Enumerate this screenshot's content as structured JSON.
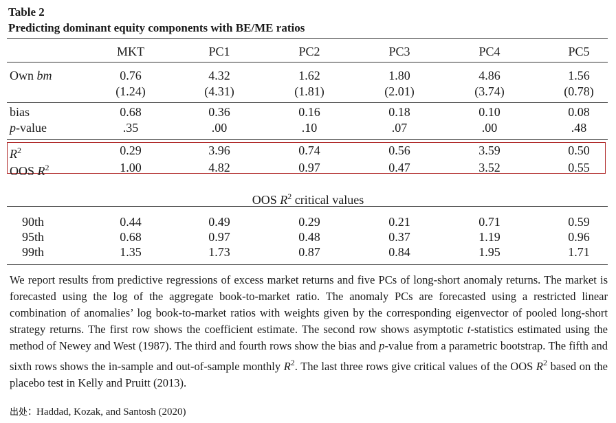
{
  "table": {
    "label": "Table 2",
    "caption": "Predicting dominant equity components with BE/ME ratios",
    "columns": [
      "MKT",
      "PC1",
      "PC2",
      "PC3",
      "PC4",
      "PC5"
    ],
    "own_bm": {
      "label_prefix": "Own ",
      "label_italic": "bm",
      "coef": [
        "0.76",
        "4.32",
        "1.62",
        "1.80",
        "4.86",
        "1.56"
      ],
      "tstat": [
        "(1.24)",
        "(4.31)",
        "(1.81)",
        "(2.01)",
        "(3.74)",
        "(0.78)"
      ]
    },
    "bias": {
      "label": "bias",
      "values": [
        "0.68",
        "0.36",
        "0.16",
        "0.18",
        "0.10",
        "0.08"
      ]
    },
    "pvalue": {
      "label_italic": "p",
      "label_suffix": "-value",
      "values": [
        ".35",
        ".00",
        ".10",
        ".07",
        ".00",
        ".48"
      ]
    },
    "r2": {
      "label": "R",
      "sup": "2",
      "values": [
        "0.29",
        "3.96",
        "0.74",
        "0.56",
        "3.59",
        "0.50"
      ]
    },
    "oos_r2": {
      "label_prefix": "OOS ",
      "label": "R",
      "sup": "2",
      "values": [
        "1.00",
        "4.82",
        "0.97",
        "0.47",
        "3.52",
        "0.55"
      ]
    },
    "critical": {
      "heading_prefix": "OOS ",
      "heading_var": "R",
      "heading_sup": "2",
      "heading_suffix": " critical values",
      "rows": [
        {
          "label": "90th",
          "values": [
            "0.44",
            "0.49",
            "0.29",
            "0.21",
            "0.71",
            "0.59"
          ]
        },
        {
          "label": "95th",
          "values": [
            "0.68",
            "0.97",
            "0.48",
            "0.37",
            "1.19",
            "0.96"
          ]
        },
        {
          "label": "99th",
          "values": [
            "1.35",
            "1.73",
            "0.87",
            "0.84",
            "1.95",
            "1.71"
          ]
        }
      ]
    }
  },
  "note": {
    "p1": "We report results from predictive regressions of excess market returns and five PCs of long-short anomaly returns. The market is forecasted using the log of the aggregate book-to-market ratio. The anomaly PCs are forecasted using a restricted linear combination of anomalies’ log book-to-market ratios with weights given by the corresponding eigenvector of pooled long-short strategy returns. The first row shows the coefficient estimate. The second row shows asymptotic ",
    "t_italic": "t",
    "p2": "-statistics estimated using the method of Newey and West (1987). The third and fourth rows show the bias and ",
    "p_italic": "p",
    "p3": "-value from a parametric bootstrap. The fifth and sixth rows shows the in-sample and out-of-sample monthly ",
    "r_italic": "R",
    "r_sup": "2",
    "p4": ". The last three rows give critical values of the OOS ",
    "r2_italic": "R",
    "r2_sup": "2",
    "p5": " based on the placebo test in Kelly and Pruitt (2013)."
  },
  "source": {
    "label": "出处：",
    "text": "Haddad, Kozak, and Santosh (2020)"
  }
}
